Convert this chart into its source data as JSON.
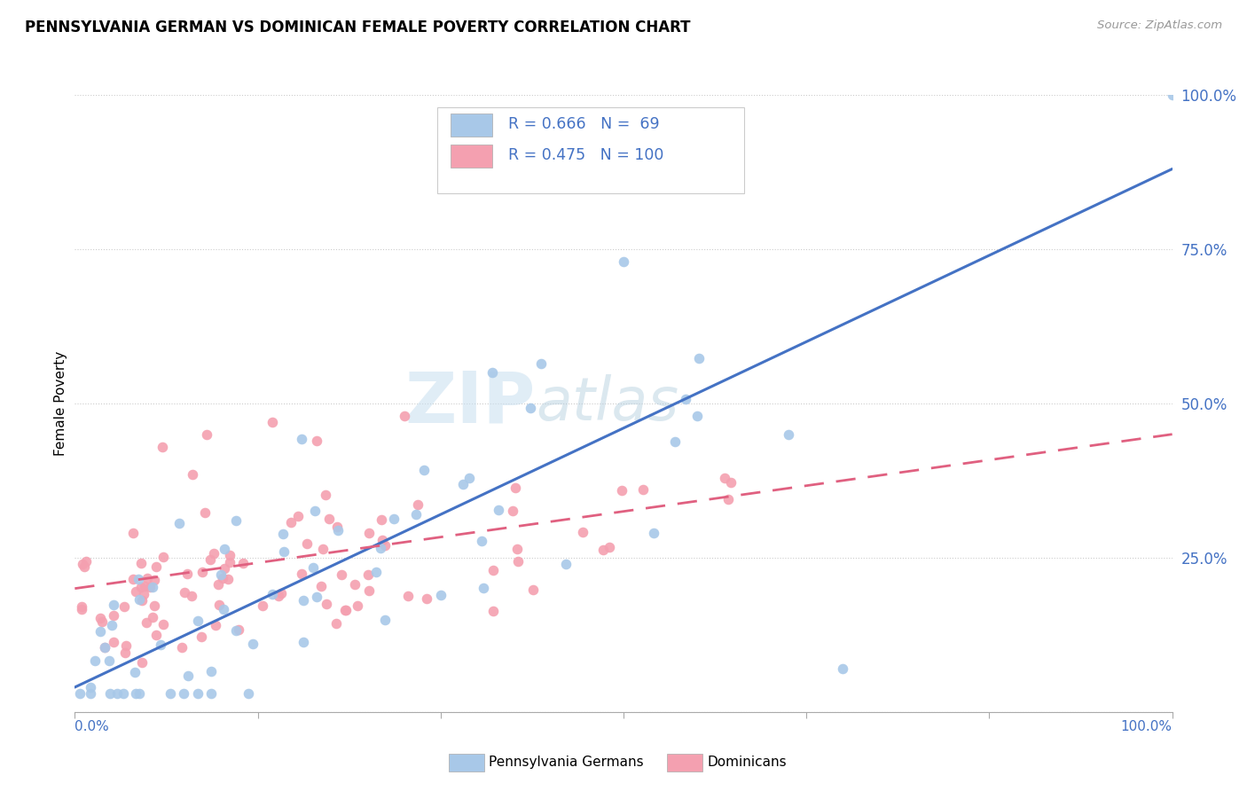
{
  "title": "PENNSYLVANIA GERMAN VS DOMINICAN FEMALE POVERTY CORRELATION CHART",
  "source": "Source: ZipAtlas.com",
  "ylabel": "Female Poverty",
  "color_blue": "#A8C8E8",
  "color_pink": "#F4A0B0",
  "color_blue_line": "#4472C4",
  "color_pink_line": "#E06080",
  "color_grid": "#cccccc",
  "color_ytick": "#4472C4",
  "watermark_zip": "ZIP",
  "watermark_atlas": "atlas",
  "legend_text_r1": "R = 0.666",
  "legend_text_n1": "N =  69",
  "legend_text_r2": "R = 0.475",
  "legend_text_n2": "N = 100",
  "bottom_label1": "Pennsylvania Germans",
  "bottom_label2": "Dominicans"
}
